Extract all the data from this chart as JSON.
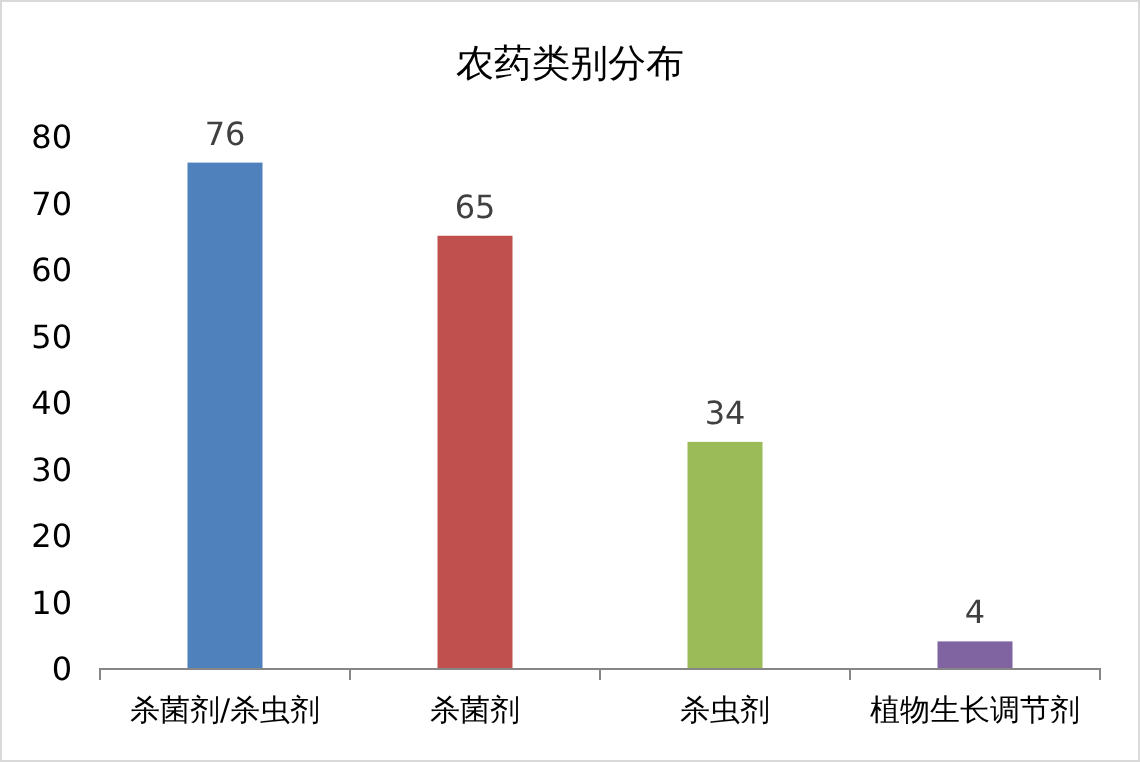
{
  "chart_data": {
    "type": "bar",
    "title": "农药类别分布",
    "categories": [
      "杀菌剂/杀虫剂",
      "杀菌剂",
      "杀虫剂",
      "植物生长调节剂"
    ],
    "values": [
      76,
      65,
      34,
      4
    ],
    "colors": [
      "#4f81bd",
      "#c0504d",
      "#9bbb59",
      "#8064a2"
    ],
    "ylim": [
      0,
      80
    ],
    "yticks": [
      0,
      10,
      20,
      30,
      40,
      50,
      60,
      70,
      80
    ],
    "data_labels": true
  }
}
